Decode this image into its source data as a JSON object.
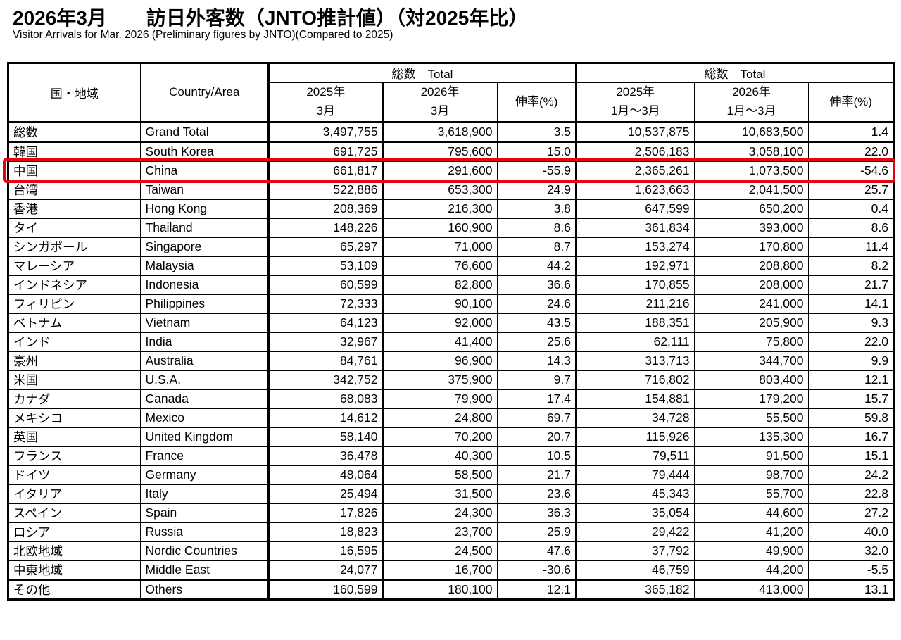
{
  "page": {
    "title": "2026年3月　　訪日外客数（JNTO推計値）（対2025年比）",
    "subtitle": "Visitor Arrivals for Mar. 2026 (Preliminary figures by JNTO)(Compared to 2025)"
  },
  "table": {
    "header": {
      "country_jp": "国・地域",
      "country_en": "Country/Area",
      "group1_title": "総数　Total",
      "group2_title": "総数　Total",
      "col_2025_mar": "2025年\n3月",
      "col_2026_mar": "2026年\n3月",
      "col_rate_mar": "伸率(%)",
      "col_2025_q1": "2025年\n1月～3月",
      "col_2026_q1": "2026年\n1月～3月",
      "col_rate_q1": "伸率(%)"
    },
    "highlight_color": "#e60012",
    "rows": [
      {
        "jp": "総数",
        "en": "Grand Total",
        "m2025": "3,497,755",
        "m2026": "3,618,900",
        "rate_m": "3.5",
        "q2025": "10,537,875",
        "q2026": "10,683,500",
        "rate_q": "1.4",
        "thick_below": true,
        "highlighted": false
      },
      {
        "jp": "韓国",
        "en": "South Korea",
        "m2025": "691,725",
        "m2026": "795,600",
        "rate_m": "15.0",
        "q2025": "2,506,183",
        "q2026": "3,058,100",
        "rate_q": "22.0",
        "thick_below": false,
        "highlighted": false
      },
      {
        "jp": "中国",
        "en": "China",
        "m2025": "661,817",
        "m2026": "291,600",
        "rate_m": "-55.9",
        "q2025": "2,365,261",
        "q2026": "1,073,500",
        "rate_q": "-54.6",
        "thick_below": false,
        "highlighted": true
      },
      {
        "jp": "台湾",
        "en": "Taiwan",
        "m2025": "522,886",
        "m2026": "653,300",
        "rate_m": "24.9",
        "q2025": "1,623,663",
        "q2026": "2,041,500",
        "rate_q": "25.7",
        "thick_below": false,
        "highlighted": false
      },
      {
        "jp": "香港",
        "en": "Hong Kong",
        "m2025": "208,369",
        "m2026": "216,300",
        "rate_m": "3.8",
        "q2025": "647,599",
        "q2026": "650,200",
        "rate_q": "0.4",
        "thick_below": false,
        "highlighted": false
      },
      {
        "jp": "タイ",
        "en": "Thailand",
        "m2025": "148,226",
        "m2026": "160,900",
        "rate_m": "8.6",
        "q2025": "361,834",
        "q2026": "393,000",
        "rate_q": "8.6",
        "thick_below": false,
        "highlighted": false
      },
      {
        "jp": "シンガポール",
        "en": "Singapore",
        "m2025": "65,297",
        "m2026": "71,000",
        "rate_m": "8.7",
        "q2025": "153,274",
        "q2026": "170,800",
        "rate_q": "11.4",
        "thick_below": false,
        "highlighted": false
      },
      {
        "jp": "マレーシア",
        "en": "Malaysia",
        "m2025": "53,109",
        "m2026": "76,600",
        "rate_m": "44.2",
        "q2025": "192,971",
        "q2026": "208,800",
        "rate_q": "8.2",
        "thick_below": false,
        "highlighted": false
      },
      {
        "jp": "インドネシア",
        "en": "Indonesia",
        "m2025": "60,599",
        "m2026": "82,800",
        "rate_m": "36.6",
        "q2025": "170,855",
        "q2026": "208,000",
        "rate_q": "21.7",
        "thick_below": false,
        "highlighted": false
      },
      {
        "jp": "フィリピン",
        "en": "Philippines",
        "m2025": "72,333",
        "m2026": "90,100",
        "rate_m": "24.6",
        "q2025": "211,216",
        "q2026": "241,000",
        "rate_q": "14.1",
        "thick_below": false,
        "highlighted": false
      },
      {
        "jp": "ベトナム",
        "en": "Vietnam",
        "m2025": "64,123",
        "m2026": "92,000",
        "rate_m": "43.5",
        "q2025": "188,351",
        "q2026": "205,900",
        "rate_q": "9.3",
        "thick_below": false,
        "highlighted": false
      },
      {
        "jp": "インド",
        "en": "India",
        "m2025": "32,967",
        "m2026": "41,400",
        "rate_m": "25.6",
        "q2025": "62,111",
        "q2026": "75,800",
        "rate_q": "22.0",
        "thick_below": false,
        "highlighted": false
      },
      {
        "jp": "豪州",
        "en": "Australia",
        "m2025": "84,761",
        "m2026": "96,900",
        "rate_m": "14.3",
        "q2025": "313,713",
        "q2026": "344,700",
        "rate_q": "9.9",
        "thick_below": false,
        "highlighted": false
      },
      {
        "jp": "米国",
        "en": "U.S.A.",
        "m2025": "342,752",
        "m2026": "375,900",
        "rate_m": "9.7",
        "q2025": "716,802",
        "q2026": "803,400",
        "rate_q": "12.1",
        "thick_below": false,
        "highlighted": false
      },
      {
        "jp": "カナダ",
        "en": "Canada",
        "m2025": "68,083",
        "m2026": "79,900",
        "rate_m": "17.4",
        "q2025": "154,881",
        "q2026": "179,200",
        "rate_q": "15.7",
        "thick_below": false,
        "highlighted": false
      },
      {
        "jp": "メキシコ",
        "en": "Mexico",
        "m2025": "14,612",
        "m2026": "24,800",
        "rate_m": "69.7",
        "q2025": "34,728",
        "q2026": "55,500",
        "rate_q": "59.8",
        "thick_below": false,
        "highlighted": false
      },
      {
        "jp": "英国",
        "en": "United Kingdom",
        "m2025": "58,140",
        "m2026": "70,200",
        "rate_m": "20.7",
        "q2025": "115,926",
        "q2026": "135,300",
        "rate_q": "16.7",
        "thick_below": false,
        "highlighted": false
      },
      {
        "jp": "フランス",
        "en": "France",
        "m2025": "36,478",
        "m2026": "40,300",
        "rate_m": "10.5",
        "q2025": "79,511",
        "q2026": "91,500",
        "rate_q": "15.1",
        "thick_below": false,
        "highlighted": false
      },
      {
        "jp": "ドイツ",
        "en": "Germany",
        "m2025": "48,064",
        "m2026": "58,500",
        "rate_m": "21.7",
        "q2025": "79,444",
        "q2026": "98,700",
        "rate_q": "24.2",
        "thick_below": false,
        "highlighted": false
      },
      {
        "jp": "イタリア",
        "en": "Italy",
        "m2025": "25,494",
        "m2026": "31,500",
        "rate_m": "23.6",
        "q2025": "45,343",
        "q2026": "55,700",
        "rate_q": "22.8",
        "thick_below": false,
        "highlighted": false
      },
      {
        "jp": "スペイン",
        "en": "Spain",
        "m2025": "17,826",
        "m2026": "24,300",
        "rate_m": "36.3",
        "q2025": "35,054",
        "q2026": "44,600",
        "rate_q": "27.2",
        "thick_below": false,
        "highlighted": false
      },
      {
        "jp": "ロシア",
        "en": "Russia",
        "m2025": "18,823",
        "m2026": "23,700",
        "rate_m": "25.9",
        "q2025": "29,422",
        "q2026": "41,200",
        "rate_q": "40.0",
        "thick_below": false,
        "highlighted": false
      },
      {
        "jp": "北欧地域",
        "en": "Nordic Countries",
        "m2025": "16,595",
        "m2026": "24,500",
        "rate_m": "47.6",
        "q2025": "37,792",
        "q2026": "49,900",
        "rate_q": "32.0",
        "thick_below": false,
        "highlighted": false
      },
      {
        "jp": "中東地域",
        "en": "Middle East",
        "m2025": "24,077",
        "m2026": "16,700",
        "rate_m": "-30.6",
        "q2025": "46,759",
        "q2026": "44,200",
        "rate_q": "-5.5",
        "thick_below": true,
        "highlighted": false
      },
      {
        "jp": "その他",
        "en": "Others",
        "m2025": "160,599",
        "m2026": "180,100",
        "rate_m": "12.1",
        "q2025": "365,182",
        "q2026": "413,000",
        "rate_q": "13.1",
        "thick_below": false,
        "highlighted": false
      }
    ]
  }
}
